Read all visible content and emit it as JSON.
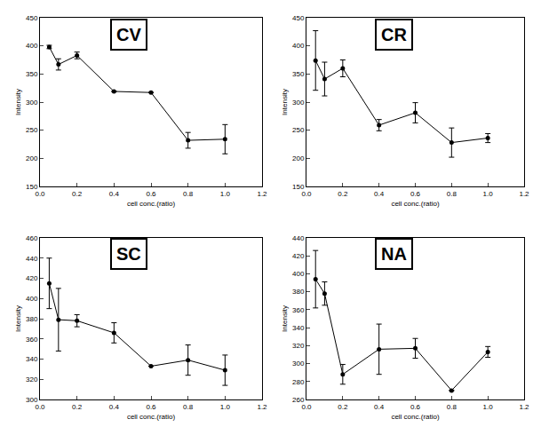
{
  "chart_data": [
    {
      "type": "line",
      "title": "CV",
      "x_label": "cell conc.(ratio)",
      "y_label": "Intensity",
      "x": [
        0.05,
        0.1,
        0.2,
        0.4,
        0.6,
        0.8,
        1.0
      ],
      "values": [
        398,
        367,
        383,
        319,
        317,
        232,
        234
      ],
      "errors": [
        3,
        10,
        6,
        0,
        0,
        14,
        26
      ],
      "color": "#000000",
      "marker": "circle",
      "grid": false,
      "xlim": [
        0,
        1.2
      ],
      "xticks": [
        {
          "value": 0,
          "label": "0.0"
        },
        0.2,
        0.4,
        0.6,
        0.8,
        {
          "value": 1,
          "label": "1.0"
        },
        1.2
      ],
      "ylim": [
        150,
        450
      ],
      "yticks": [
        150,
        200,
        250,
        300,
        350,
        400,
        450
      ]
    },
    {
      "type": "line",
      "title": "CR",
      "x_label": "cell conc.(ratio)",
      "y_label": "Intensity",
      "x": [
        0.05,
        0.1,
        0.2,
        0.4,
        0.6,
        0.8,
        1.0
      ],
      "values": [
        374,
        341,
        360,
        259,
        281,
        228,
        236
      ],
      "errors": [
        53,
        30,
        15,
        10,
        18,
        26,
        8
      ],
      "color": "#000000",
      "marker": "circle",
      "grid": false,
      "xlim": [
        0,
        1.2
      ],
      "xticks": [
        {
          "value": 0,
          "label": "0.0"
        },
        0.2,
        0.4,
        0.6,
        0.8,
        {
          "value": 1,
          "label": "1.0"
        },
        1.2
      ],
      "ylim": [
        150,
        450
      ],
      "yticks": [
        150,
        200,
        250,
        300,
        350,
        400,
        450
      ]
    },
    {
      "type": "line",
      "title": "SC",
      "x_label": "cell conc.(ratio)",
      "y_label": "Intensity",
      "x": [
        0.05,
        0.1,
        0.2,
        0.4,
        0.6,
        0.8,
        1.0
      ],
      "values": [
        415,
        379,
        378,
        366,
        333,
        339,
        329
      ],
      "errors": [
        25,
        31,
        6,
        10,
        0,
        15,
        15
      ],
      "color": "#000000",
      "marker": "circle",
      "grid": false,
      "xlim": [
        0,
        1.2
      ],
      "xticks": [
        {
          "value": 0,
          "label": "0.0"
        },
        0.2,
        0.4,
        0.6,
        0.8,
        {
          "value": 1,
          "label": "1.0"
        },
        1.2
      ],
      "ylim": [
        300,
        460
      ],
      "yticks": [
        300,
        320,
        340,
        360,
        380,
        400,
        420,
        440,
        460
      ]
    },
    {
      "type": "line",
      "title": "NA",
      "x_label": "cell conc.(ratio)",
      "y_label": "Intensity",
      "x": [
        0.05,
        0.1,
        0.2,
        0.4,
        0.6,
        0.8,
        1.0
      ],
      "values": [
        394,
        378,
        288,
        316,
        317,
        270,
        313
      ],
      "errors": [
        32,
        13,
        11,
        28,
        11,
        0,
        6
      ],
      "color": "#000000",
      "marker": "circle",
      "grid": false,
      "xlim": [
        0,
        1.2
      ],
      "xticks": [
        {
          "value": 0,
          "label": "0.0"
        },
        0.2,
        0.4,
        0.6,
        0.8,
        {
          "value": 1,
          "label": "1.0"
        },
        1.2
      ],
      "ylim": [
        260,
        440
      ],
      "yticks": [
        260,
        280,
        300,
        320,
        340,
        360,
        380,
        400,
        420,
        440
      ]
    }
  ]
}
